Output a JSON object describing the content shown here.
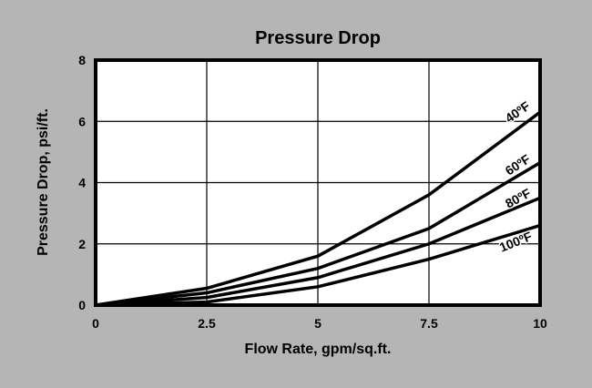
{
  "chart_data": {
    "type": "line",
    "title": "Pressure Drop",
    "xlabel": "Flow Rate, gpm/sq.ft.",
    "ylabel": "Pressure Drop, psi/ft.",
    "xlim": [
      0,
      10
    ],
    "ylim": [
      0,
      8
    ],
    "xticks": [
      "0",
      "2.5",
      "5",
      "7.5",
      "10"
    ],
    "xtick_values": [
      0,
      2.5,
      5,
      7.5,
      10
    ],
    "yticks": [
      "0",
      "2",
      "4",
      "6",
      "8"
    ],
    "ytick_values": [
      0,
      2,
      4,
      6,
      8
    ],
    "grid": true,
    "x": [
      0,
      2.5,
      5,
      7.5,
      10
    ],
    "series": [
      {
        "name": "40ºF",
        "values": [
          0,
          0.55,
          1.6,
          3.6,
          6.3
        ]
      },
      {
        "name": "60ºF",
        "values": [
          0,
          0.4,
          1.2,
          2.5,
          4.65
        ]
      },
      {
        "name": "80ºF",
        "values": [
          0,
          0.25,
          0.9,
          2.0,
          3.5
        ]
      },
      {
        "name": "100ºF",
        "values": [
          0,
          0.1,
          0.6,
          1.5,
          2.6
        ]
      }
    ],
    "colors": {
      "background": "#b5b5b5",
      "plot": "#ffffff",
      "line": "#000000"
    }
  }
}
